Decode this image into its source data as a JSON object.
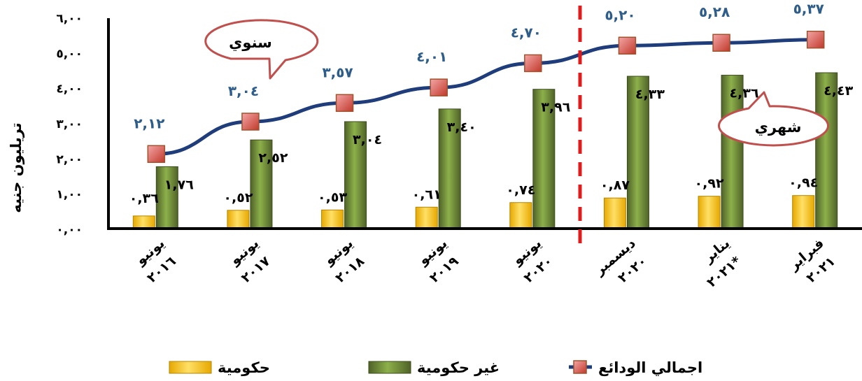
{
  "chart_data": {
    "type": "bar",
    "ylabel": "تريليون جنيه",
    "ylim": [
      0,
      6
    ],
    "y_ticks": [
      "٠,٠٠",
      "١,٠٠",
      "٢,٠٠",
      "٣,٠٠",
      "٤,٠٠",
      "٥,٠٠",
      "٦,٠٠"
    ],
    "categories": [
      [
        "يونيو",
        "٢٠١٦"
      ],
      [
        "يونيو",
        "٢٠١٧"
      ],
      [
        "يونيو",
        "٢٠١٨"
      ],
      [
        "يونيو",
        "٢٠١٩"
      ],
      [
        "يونيو",
        "٢٠٢٠"
      ],
      [
        "ديسمبر",
        "٢٠٢٠"
      ],
      [
        "يناير",
        "٢٠٢١*"
      ],
      [
        "فبراير",
        "٢٠٢١"
      ]
    ],
    "series": [
      {
        "name": "حكومية",
        "kind": "bar",
        "color": "#ffc000",
        "values": [
          0.36,
          0.52,
          0.53,
          0.61,
          0.74,
          0.87,
          0.92,
          0.94
        ],
        "labels": [
          "٠,٣٦",
          "٠,٥٢",
          "٠,٥٣",
          "٠,٦١",
          "٠,٧٤",
          "٠,٨٧",
          "٠,٩٢",
          "٠,٩٤"
        ]
      },
      {
        "name": "غير حكومية",
        "kind": "bar",
        "color": "#77933c",
        "values": [
          1.76,
          2.52,
          3.04,
          3.4,
          3.96,
          4.33,
          4.36,
          4.43
        ],
        "labels": [
          "١,٧٦",
          "٢,٥٢",
          "٣,٠٤",
          "٣,٤٠",
          "٣,٩٦",
          "٤,٣٣",
          "٤,٣٦",
          "٤,٤٣"
        ]
      },
      {
        "name": "اجمالي الودائع",
        "kind": "line",
        "color": "#1f3d7a",
        "marker_color": "#e06666",
        "values": [
          2.12,
          3.04,
          3.57,
          4.01,
          4.7,
          5.2,
          5.28,
          5.37
        ],
        "labels": [
          "٢,١٢",
          "٣,٠٤",
          "٣,٥٧",
          "٤,٠١",
          "٤,٧٠",
          "٥,٢٠",
          "٥,٢٨",
          "٥,٣٧"
        ]
      }
    ],
    "annotations": [
      {
        "text": "سنوي",
        "shape": "callout"
      },
      {
        "text": "شهري",
        "shape": "callout"
      }
    ],
    "divider": "dashed red line between يونيو ٢٠٢٠ and ديسمبر ٢٠٢٠",
    "legend_position": "bottom",
    "grid": false
  }
}
